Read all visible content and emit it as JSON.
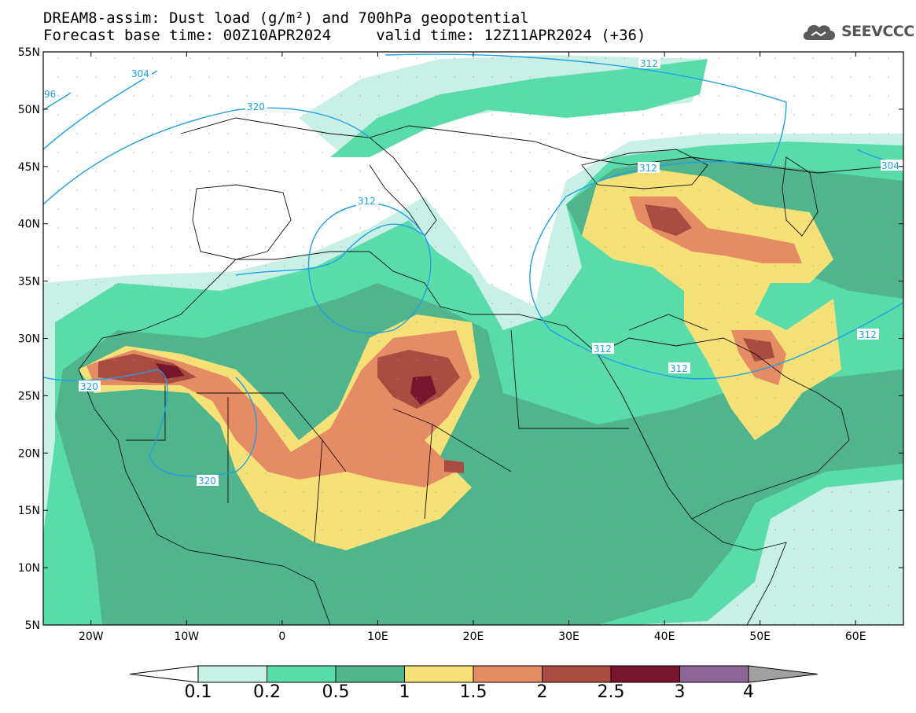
{
  "title": {
    "line1": "DREAM8-assim: Dust load (g/m²) and 700hPa geopotential",
    "line2": "Forecast base time: 00Z10APR2024     valid time: 12Z11APR2024 (+36)"
  },
  "logo": {
    "text": "SEEVCCC",
    "icon": "cloud-icon"
  },
  "map": {
    "lon_range": [
      -25,
      65
    ],
    "lat_range": [
      5,
      55
    ],
    "lon_ticks": [
      "20W",
      "10W",
      "0",
      "10E",
      "20E",
      "30E",
      "40E",
      "50E",
      "60E"
    ],
    "lat_ticks": [
      "5N",
      "10N",
      "15N",
      "20N",
      "25N",
      "30N",
      "35N",
      "40N",
      "45N",
      "50N",
      "55N"
    ],
    "contour_labels": [
      "304",
      "96",
      "320",
      "312",
      "312",
      "312",
      "312",
      "312",
      "312",
      "304",
      "320",
      "320"
    ]
  },
  "colorbar": {
    "levels": [
      "0.1",
      "0.2",
      "0.5",
      "1",
      "1.5",
      "2",
      "2.5",
      "3",
      "4"
    ],
    "colors": [
      "#c8f0e6",
      "#5adcaa",
      "#50b48c",
      "#f5e178",
      "#e68c64",
      "#aa4b41",
      "#78142d",
      "#8c6496",
      "#a0a0a0"
    ],
    "under_color": "#ffffff",
    "over_color": "#a0a0a0"
  }
}
